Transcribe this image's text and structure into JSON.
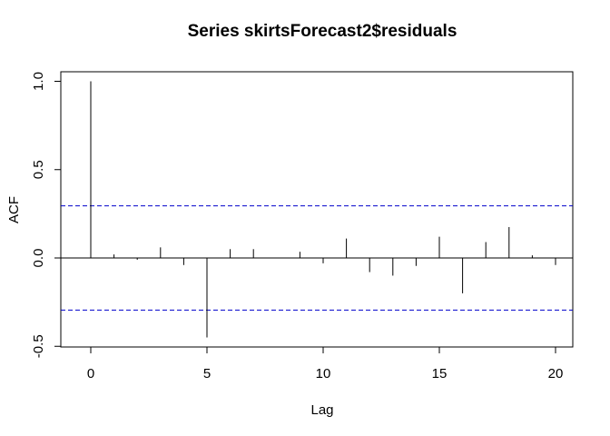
{
  "chart_data": {
    "type": "acf",
    "title": "Series  skirtsForecast2$residuals",
    "xlabel": "Lag",
    "ylabel": "ACF",
    "xlim": [
      -0.8,
      20.8
    ],
    "ylim": [
      -0.5,
      1.0
    ],
    "xticks": [
      0,
      5,
      10,
      15,
      20
    ],
    "xtick_labels": [
      "0",
      "5",
      "10",
      "15",
      "20"
    ],
    "yticks": [
      -0.5,
      0.0,
      0.5,
      1.0
    ],
    "ytick_labels": [
      "-0.5",
      "0.0",
      "0.5",
      "1.0"
    ],
    "lags": [
      0,
      1,
      2,
      3,
      4,
      5,
      6,
      7,
      8,
      9,
      10,
      11,
      12,
      13,
      14,
      15,
      16,
      17,
      18,
      19,
      20
    ],
    "acf": [
      1.0,
      0.02,
      -0.01,
      0.06,
      -0.04,
      -0.45,
      0.05,
      0.05,
      0.0,
      0.035,
      -0.03,
      0.11,
      -0.08,
      -0.1,
      -0.045,
      0.12,
      -0.2,
      0.09,
      0.175,
      0.015,
      -0.04
    ],
    "confidence_bound": 0.295,
    "confidence_color": "#0000cc",
    "bar_color": "#000000"
  }
}
